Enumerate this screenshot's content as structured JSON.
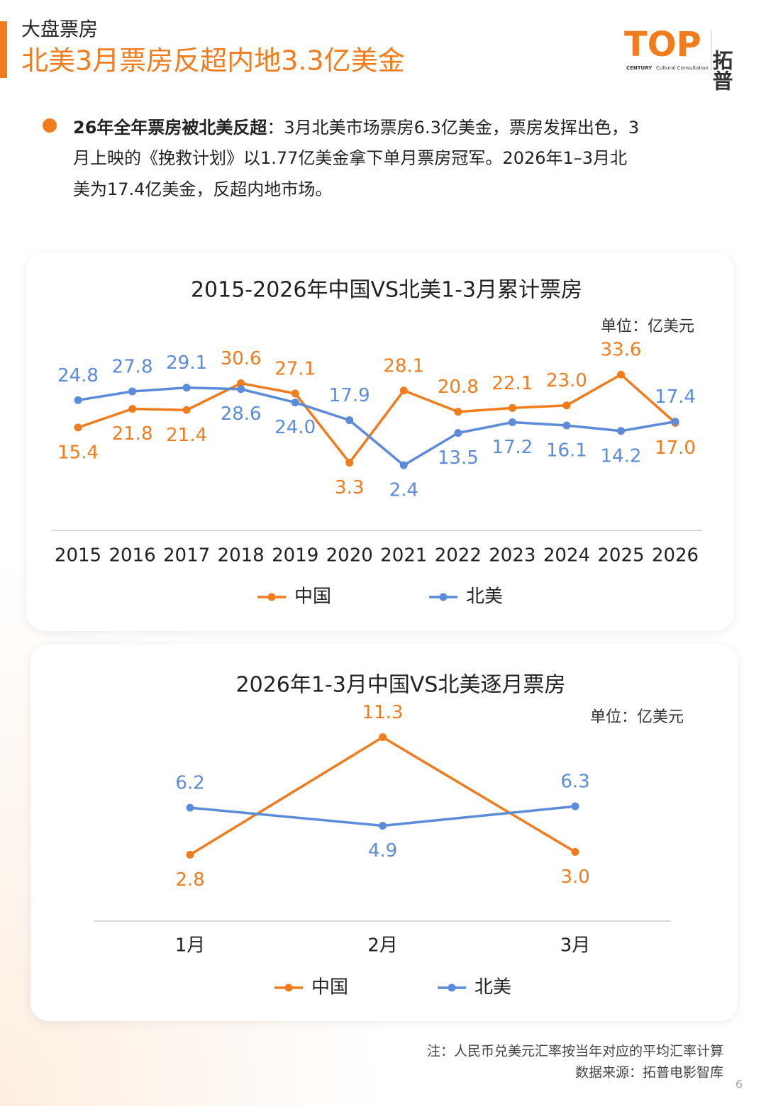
{
  "header": {
    "section": "大盘票房",
    "title": "北美3月票房反超内地3.3亿美金"
  },
  "logo": {
    "mark": "TOP",
    "brand": "拓普",
    "sub1": "CENTURY",
    "sub2": "Cultural Consultation"
  },
  "paragraph": {
    "lead": "26年全年票房被北美反超",
    "lines": [
      "：3月北美市场票房6.3亿美金，票房发挥出色，3",
      "月上映的《挽救计划》以1.77亿美金拿下单月票房冠军。2026年1–3月北",
      "美为17.4亿美金，反超内地市场。"
    ]
  },
  "chart_data": [
    {
      "type": "line",
      "title": "2015-2026年中国VS北美1-3月累计票房",
      "unit": "单位：亿美元",
      "categories": [
        "2015",
        "2016",
        "2017",
        "2018",
        "2019",
        "2020",
        "2021",
        "2022",
        "2023",
        "2024",
        "2025",
        "2026"
      ],
      "ylim": [
        -20,
        40
      ],
      "series": [
        {
          "name": "中国",
          "color": "#f07c1e",
          "values": [
            15.4,
            21.8,
            21.4,
            30.6,
            27.1,
            3.3,
            28.1,
            20.8,
            22.1,
            23.0,
            33.6,
            17.0
          ],
          "value_labels": [
            "15.4",
            "21.8",
            "21.4",
            "30.6",
            "27.1",
            "3.3",
            "28.1",
            "20.8",
            "22.1",
            "23.0",
            "33.6",
            "17.0"
          ]
        },
        {
          "name": "北美",
          "color": "#5b8bd9",
          "values": [
            24.8,
            27.8,
            29.1,
            28.6,
            24.0,
            17.9,
            2.4,
            13.5,
            17.2,
            16.1,
            14.2,
            17.4
          ],
          "value_labels": [
            "24.8",
            "27.8",
            "29.1",
            "28.6",
            "24.0",
            "17.9",
            "2.4",
            "13.5",
            "17.2",
            "16.1",
            "14.2",
            "17.4"
          ]
        }
      ]
    },
    {
      "type": "line",
      "title": "2026年1-3月中国VS北美逐月票房",
      "unit": "单位：亿美元",
      "categories": [
        "1月",
        "2月",
        "3月"
      ],
      "ylim": [
        -2,
        12
      ],
      "series": [
        {
          "name": "中国",
          "color": "#f07c1e",
          "values": [
            2.8,
            11.3,
            3.0
          ],
          "value_labels": [
            "2.8",
            "11.3",
            "3.0"
          ]
        },
        {
          "name": "北美",
          "color": "#5b8bd9",
          "values": [
            6.2,
            4.9,
            6.3
          ],
          "value_labels": [
            "6.2",
            "4.9",
            "6.3"
          ]
        }
      ]
    }
  ],
  "footer": {
    "note": "注：人民币兑美元汇率按当年对应的平均汇率计算",
    "source": "数据来源：拓普电影智库",
    "page": "6"
  }
}
